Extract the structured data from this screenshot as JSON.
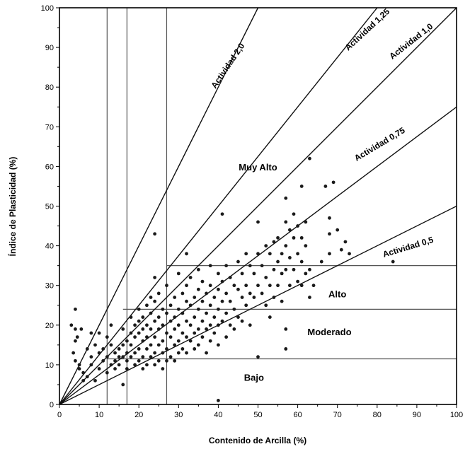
{
  "chart_data": {
    "type": "scatter",
    "title": "",
    "xlabel": "Contenido de Arcilla (%)",
    "ylabel": "Índice de Plasticidad (%)",
    "xlim": [
      0,
      100
    ],
    "ylim": [
      0,
      100
    ],
    "xticks": [
      0,
      10,
      20,
      30,
      40,
      50,
      60,
      70,
      80,
      90,
      100
    ],
    "yticks": [
      0,
      10,
      20,
      30,
      40,
      50,
      60,
      70,
      80,
      90,
      100
    ],
    "grid": false,
    "activity_lines": [
      {
        "label": "Actividad 2,0",
        "slope": 2.0
      },
      {
        "label": "Actividad 1,25",
        "slope": 1.25
      },
      {
        "label": "Actividad 1,0",
        "slope": 1.0
      },
      {
        "label": "Actividad 0,75",
        "slope": 0.75
      },
      {
        "label": "Actividad 0,5",
        "slope": 0.5
      }
    ],
    "zone_boundaries": {
      "vertical_x": [
        12,
        17,
        27
      ],
      "horizontal": [
        {
          "y": 11.5,
          "x_from": 12
        },
        {
          "y": 24,
          "x_from": 16
        },
        {
          "y": 35,
          "x_from": 27
        }
      ]
    },
    "zones": [
      {
        "label": "Muy Alto",
        "x": 50,
        "y": 59
      },
      {
        "label": "Alto",
        "x": 70,
        "y": 27
      },
      {
        "label": "Moderado",
        "x": 68,
        "y": 17.5
      },
      {
        "label": "Bajo",
        "x": 49,
        "y": 6
      }
    ],
    "series": [
      {
        "points": [
          [
            3,
            20
          ],
          [
            3.5,
            13
          ],
          [
            4,
            24
          ],
          [
            4,
            19
          ],
          [
            4,
            16
          ],
          [
            4,
            11
          ],
          [
            4.5,
            17
          ],
          [
            5,
            10
          ],
          [
            5,
            9
          ],
          [
            5.5,
            19
          ],
          [
            6,
            8
          ],
          [
            6,
            6
          ],
          [
            7,
            7
          ],
          [
            7,
            14
          ],
          [
            8,
            18
          ],
          [
            8,
            12
          ],
          [
            8,
            10
          ],
          [
            9,
            6
          ],
          [
            9,
            15
          ],
          [
            10,
            18
          ],
          [
            10,
            13
          ],
          [
            10,
            9
          ],
          [
            11,
            11
          ],
          [
            11,
            14
          ],
          [
            12,
            17
          ],
          [
            12,
            12
          ],
          [
            12,
            8
          ],
          [
            13,
            20
          ],
          [
            13,
            15
          ],
          [
            13,
            10
          ],
          [
            14,
            13
          ],
          [
            14,
            11
          ],
          [
            14,
            9
          ],
          [
            15,
            14
          ],
          [
            15,
            12
          ],
          [
            15,
            10
          ],
          [
            16,
            19
          ],
          [
            16,
            15
          ],
          [
            16,
            12
          ],
          [
            16,
            5
          ],
          [
            17,
            16
          ],
          [
            17,
            13
          ],
          [
            17,
            11
          ],
          [
            17,
            9
          ],
          [
            18,
            22
          ],
          [
            18,
            18
          ],
          [
            18,
            15
          ],
          [
            18,
            12
          ],
          [
            19,
            20
          ],
          [
            19,
            17
          ],
          [
            19,
            13
          ],
          [
            19,
            10
          ],
          [
            20,
            24
          ],
          [
            20,
            21
          ],
          [
            20,
            18
          ],
          [
            20,
            14
          ],
          [
            20,
            11
          ],
          [
            21,
            22
          ],
          [
            21,
            19
          ],
          [
            21,
            16
          ],
          [
            21,
            12
          ],
          [
            21,
            9
          ],
          [
            22,
            25
          ],
          [
            22,
            20
          ],
          [
            22,
            17
          ],
          [
            22,
            14
          ],
          [
            22,
            10
          ],
          [
            23,
            27
          ],
          [
            23,
            23
          ],
          [
            23,
            19
          ],
          [
            23,
            15
          ],
          [
            23,
            12
          ],
          [
            24,
            32
          ],
          [
            24,
            26
          ],
          [
            24,
            21
          ],
          [
            24,
            17
          ],
          [
            24,
            13
          ],
          [
            24,
            10
          ],
          [
            25,
            28
          ],
          [
            25,
            22
          ],
          [
            25,
            19
          ],
          [
            25,
            15
          ],
          [
            25,
            11
          ],
          [
            26,
            24
          ],
          [
            26,
            20
          ],
          [
            26,
            16
          ],
          [
            26,
            13
          ],
          [
            26,
            9
          ],
          [
            27,
            30
          ],
          [
            27,
            23
          ],
          [
            27,
            18
          ],
          [
            27,
            14
          ],
          [
            27,
            11
          ],
          [
            28,
            25
          ],
          [
            28,
            21
          ],
          [
            28,
            17
          ],
          [
            28,
            12
          ],
          [
            29,
            27
          ],
          [
            29,
            22
          ],
          [
            29,
            19
          ],
          [
            29,
            15
          ],
          [
            29,
            11
          ],
          [
            30,
            33
          ],
          [
            30,
            24
          ],
          [
            30,
            20
          ],
          [
            30,
            16
          ],
          [
            30,
            13
          ],
          [
            31,
            28
          ],
          [
            31,
            23
          ],
          [
            31,
            18
          ],
          [
            31,
            14
          ],
          [
            32,
            38
          ],
          [
            32,
            30
          ],
          [
            32,
            26
          ],
          [
            32,
            21
          ],
          [
            32,
            17
          ],
          [
            32,
            13
          ],
          [
            33,
            32
          ],
          [
            33,
            25
          ],
          [
            33,
            20
          ],
          [
            33,
            16
          ],
          [
            34,
            27
          ],
          [
            34,
            22
          ],
          [
            34,
            18
          ],
          [
            34,
            14
          ],
          [
            35,
            34
          ],
          [
            35,
            29
          ],
          [
            35,
            24
          ],
          [
            35,
            19
          ],
          [
            35,
            15
          ],
          [
            36,
            31
          ],
          [
            36,
            26
          ],
          [
            36,
            21
          ],
          [
            36,
            17
          ],
          [
            37,
            28
          ],
          [
            37,
            23
          ],
          [
            37,
            19
          ],
          [
            37,
            13
          ],
          [
            38,
            35
          ],
          [
            38,
            30
          ],
          [
            38,
            25
          ],
          [
            38,
            20
          ],
          [
            38,
            16
          ],
          [
            39,
            27
          ],
          [
            39,
            22
          ],
          [
            39,
            18
          ],
          [
            40,
            33
          ],
          [
            40,
            29
          ],
          [
            40,
            24
          ],
          [
            40,
            20
          ],
          [
            40,
            15
          ],
          [
            41,
            48
          ],
          [
            41,
            31
          ],
          [
            41,
            26
          ],
          [
            41,
            21
          ],
          [
            42,
            35
          ],
          [
            42,
            28
          ],
          [
            42,
            23
          ],
          [
            42,
            17
          ],
          [
            43,
            32
          ],
          [
            43,
            26
          ],
          [
            43,
            20
          ],
          [
            44,
            30
          ],
          [
            44,
            24
          ],
          [
            44,
            19
          ],
          [
            45,
            36
          ],
          [
            45,
            29
          ],
          [
            45,
            22
          ],
          [
            46,
            33
          ],
          [
            46,
            27
          ],
          [
            46,
            21
          ],
          [
            47,
            38
          ],
          [
            47,
            30
          ],
          [
            47,
            25
          ],
          [
            48,
            35
          ],
          [
            48,
            28
          ],
          [
            48,
            20
          ],
          [
            49,
            33
          ],
          [
            49,
            27
          ],
          [
            50,
            46
          ],
          [
            50,
            38
          ],
          [
            50,
            30
          ],
          [
            50,
            12
          ],
          [
            51,
            35
          ],
          [
            51,
            28
          ],
          [
            52,
            40
          ],
          [
            52,
            32
          ],
          [
            52,
            25
          ],
          [
            53,
            38
          ],
          [
            53,
            30
          ],
          [
            53,
            22
          ],
          [
            54,
            41
          ],
          [
            54,
            34
          ],
          [
            54,
            27
          ],
          [
            55,
            42
          ],
          [
            55,
            36
          ],
          [
            55,
            30
          ],
          [
            56,
            38
          ],
          [
            56,
            33
          ],
          [
            56,
            26
          ],
          [
            57,
            52
          ],
          [
            57,
            46
          ],
          [
            57,
            40
          ],
          [
            57,
            34
          ],
          [
            57,
            19
          ],
          [
            57,
            14
          ],
          [
            58,
            44
          ],
          [
            58,
            37
          ],
          [
            58,
            30
          ],
          [
            59,
            48
          ],
          [
            59,
            42
          ],
          [
            59,
            34
          ],
          [
            60,
            45
          ],
          [
            60,
            38
          ],
          [
            60,
            31
          ],
          [
            61,
            55
          ],
          [
            61,
            42
          ],
          [
            61,
            36
          ],
          [
            61,
            30
          ],
          [
            62,
            46
          ],
          [
            62,
            40
          ],
          [
            62,
            33
          ],
          [
            63,
            62
          ],
          [
            63,
            34
          ],
          [
            63,
            27
          ],
          [
            64,
            30
          ],
          [
            66,
            36
          ],
          [
            67,
            55
          ],
          [
            68,
            47
          ],
          [
            68,
            43
          ],
          [
            68,
            38
          ],
          [
            69,
            56
          ],
          [
            70,
            44
          ],
          [
            71,
            39
          ],
          [
            72,
            41
          ],
          [
            73,
            38
          ],
          [
            84,
            36
          ],
          [
            40,
            1
          ],
          [
            24,
            43
          ]
        ]
      }
    ]
  }
}
